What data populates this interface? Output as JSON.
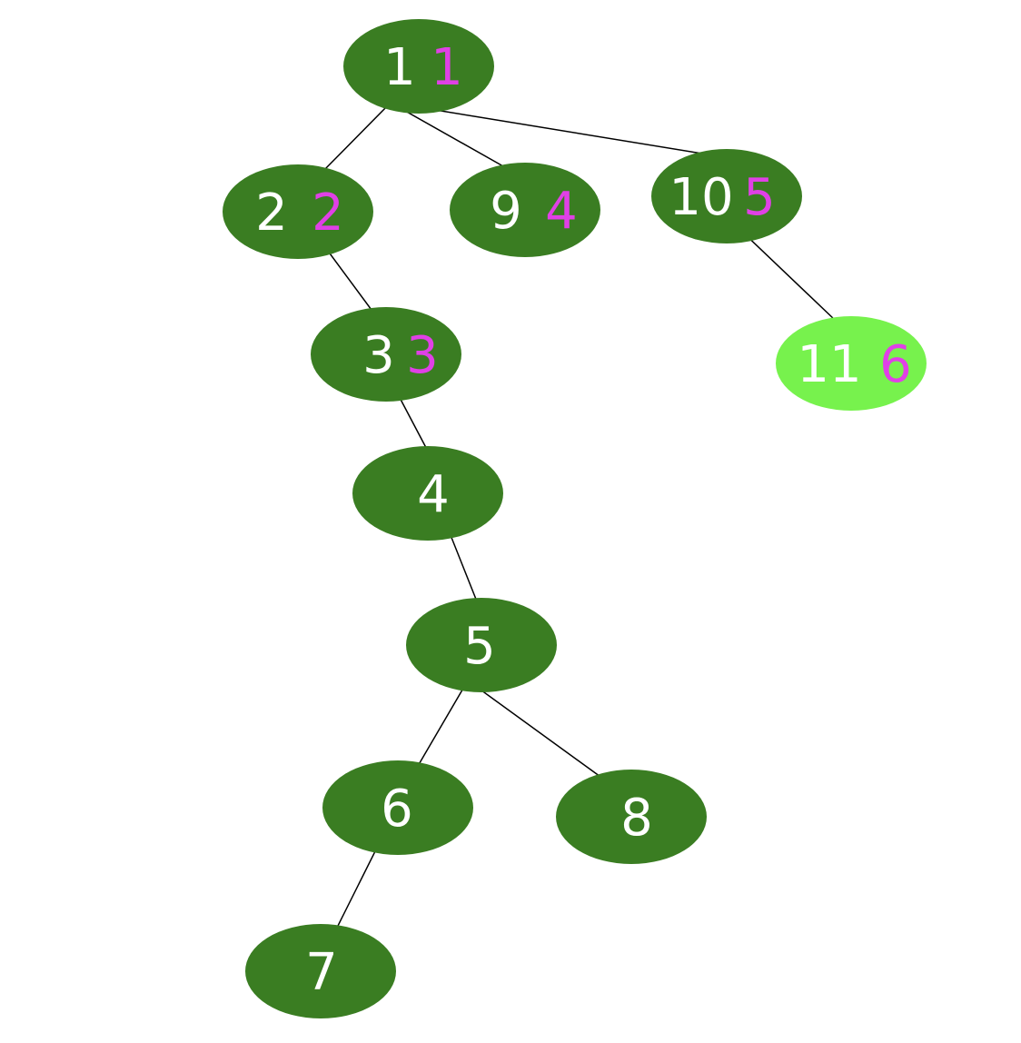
{
  "colors": {
    "node_fill": "#3a7d22",
    "highlight_fill": "#77f24d",
    "label_text": "#ffffff",
    "order_text": "#e040e6",
    "edge": "#000000"
  },
  "nodes": [
    {
      "id": "1",
      "label": "1",
      "order": "1",
      "highlighted": false
    },
    {
      "id": "2",
      "label": "2",
      "order": "2",
      "highlighted": false
    },
    {
      "id": "9",
      "label": "9",
      "order": "4",
      "highlighted": false
    },
    {
      "id": "10",
      "label": "10",
      "order": "5",
      "highlighted": false
    },
    {
      "id": "3",
      "label": "3",
      "order": "3",
      "highlighted": false
    },
    {
      "id": "11",
      "label": "11",
      "order": "6",
      "highlighted": true
    },
    {
      "id": "4",
      "label": "4",
      "order": "",
      "highlighted": false
    },
    {
      "id": "5",
      "label": "5",
      "order": "",
      "highlighted": false
    },
    {
      "id": "6",
      "label": "6",
      "order": "",
      "highlighted": false
    },
    {
      "id": "8",
      "label": "8",
      "order": "",
      "highlighted": false
    },
    {
      "id": "7",
      "label": "7",
      "order": "",
      "highlighted": false
    }
  ],
  "edges": [
    {
      "from": "1",
      "to": "2"
    },
    {
      "from": "1",
      "to": "9"
    },
    {
      "from": "1",
      "to": "10"
    },
    {
      "from": "2",
      "to": "3"
    },
    {
      "from": "10",
      "to": "11"
    },
    {
      "from": "3",
      "to": "4"
    },
    {
      "from": "4",
      "to": "5"
    },
    {
      "from": "5",
      "to": "6"
    },
    {
      "from": "5",
      "to": "8"
    },
    {
      "from": "6",
      "to": "7"
    }
  ]
}
